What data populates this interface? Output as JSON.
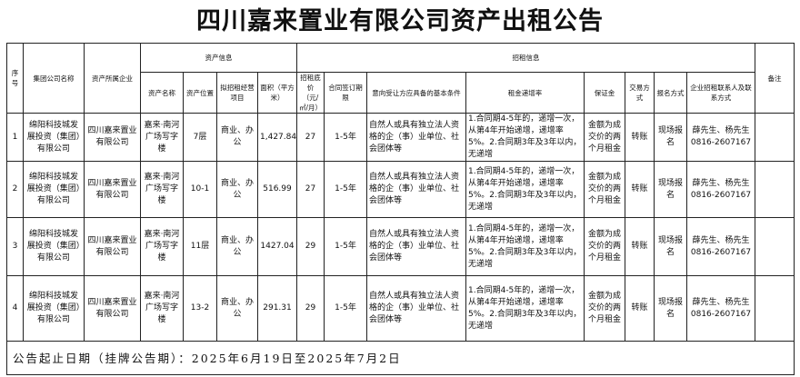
{
  "title": "四川嘉来置业有限公司资产出租公告",
  "headers": {
    "seq": "序号",
    "group": "集团公司名称",
    "owner": "资产所属企业",
    "asset_info": "资产信息",
    "lease_info": "招租信息",
    "remark": "备注",
    "asset_name": "资产名称",
    "location": "资产位置",
    "business": "拟招租经营项目",
    "area": "面积（平方米）",
    "price": "招租底价（元/㎡/月）",
    "term": "合同签订期限",
    "conditions": "意向受让方应具备的基本条件",
    "increase": "租金递增率",
    "deposit": "保证金",
    "trade": "交易方式",
    "signup": "报名方式",
    "contact": "企业招租联系人及联系方式"
  },
  "rows": [
    {
      "seq": "1",
      "group": "绵阳科技城发展投资（集团）有限公司",
      "owner": "四川嘉来置业有限公司",
      "asset_name": "嘉来·南河广场写字楼",
      "location": "7层",
      "business": "商业、办公",
      "area": "1,427.84",
      "price": "27",
      "term": "1-5年",
      "conditions": "自然人或具有独立法人资格的企（事）业单位、社会团体等",
      "increase": "1.合同期4-5年的，递增一次，从第4年开始递增，递增率5%。2.合同期3年及3年以内，无递增",
      "deposit": "金额为成交价的两个月租金",
      "trade": "转账",
      "signup": "现场报名",
      "contact": "薛先生、杨先生 0816-2607167",
      "remark": ""
    },
    {
      "seq": "2",
      "group": "绵阳科技城发展投资（集团）有限公司",
      "owner": "四川嘉来置业有限公司",
      "asset_name": "嘉来·南河广场写字楼",
      "location": "10-1",
      "business": "商业、办公",
      "area": "516.99",
      "price": "27",
      "term": "1-5年",
      "conditions": "自然人或具有独立法人资格的企（事）业单位、社会团体等",
      "increase": "1.合同期4-5年的，递增一次，从第4年开始递增，递增率5%。2.合同期3年及3年以内，无递增",
      "deposit": "金额为成交价的两个月租金",
      "trade": "转账",
      "signup": "现场报名",
      "contact": "薛先生、杨先生 0816-2607167",
      "remark": ""
    },
    {
      "seq": "3",
      "group": "绵阳科技城发展投资（集团）有限公司",
      "owner": "四川嘉来置业有限公司",
      "asset_name": "嘉来·南河广场写字楼",
      "location": "11层",
      "business": "商业、办公",
      "area": "1427.04",
      "price": "29",
      "term": "1-5年",
      "conditions": "自然人或具有独立法人资格的企（事）业单位、社会团体等",
      "increase": "1.合同期4-5年的，递增一次，从第4年开始递增，递增率5%。2.合同期3年及3年以内，无递增",
      "deposit": "金额为成交价的两个月租金",
      "trade": "转账",
      "signup": "现场报名",
      "contact": "薛先生、杨先生 0816-2607167",
      "remark": ""
    },
    {
      "seq": "4",
      "group": "绵阳科技城发展投资（集团）有限公司",
      "owner": "四川嘉来置业有限公司",
      "asset_name": "嘉来·南河广场写字楼",
      "location": "13-2",
      "business": "商业、办公",
      "area": "291.31",
      "price": "29",
      "term": "1-5年",
      "conditions": "自然人或具有独立法人资格的企（事）业单位、社会团体等",
      "increase": "1.合同期4-5年的，递增一次，从第4年开始递增，递增率5%。2.合同期3年及3年以内，无递增",
      "deposit": "金额为成交价的两个月租金",
      "trade": "转账",
      "signup": "现场报名",
      "contact": "薛先生、杨先生 0816-2607167",
      "remark": ""
    }
  ],
  "footer": "公告起止日期（挂牌公告期）：2025年6月19日至2025年7月2日"
}
